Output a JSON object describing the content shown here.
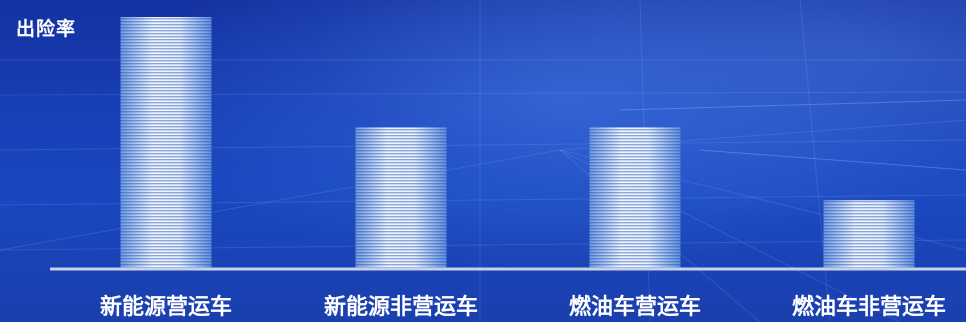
{
  "chart_data": {
    "type": "bar",
    "ylabel": "出险率",
    "categories": [
      "新能源营运车",
      "新能源非营运车",
      "燃油车营运车",
      "燃油车非营运车"
    ],
    "values": [
      100,
      56,
      56,
      27
    ],
    "ylim": [
      0,
      100
    ],
    "grid": false,
    "colors": {
      "bar_light": "#eef6ff",
      "bar_dark": "#5f8fdc",
      "axis": "#c8d2e6",
      "background": "#1a47bf"
    }
  }
}
